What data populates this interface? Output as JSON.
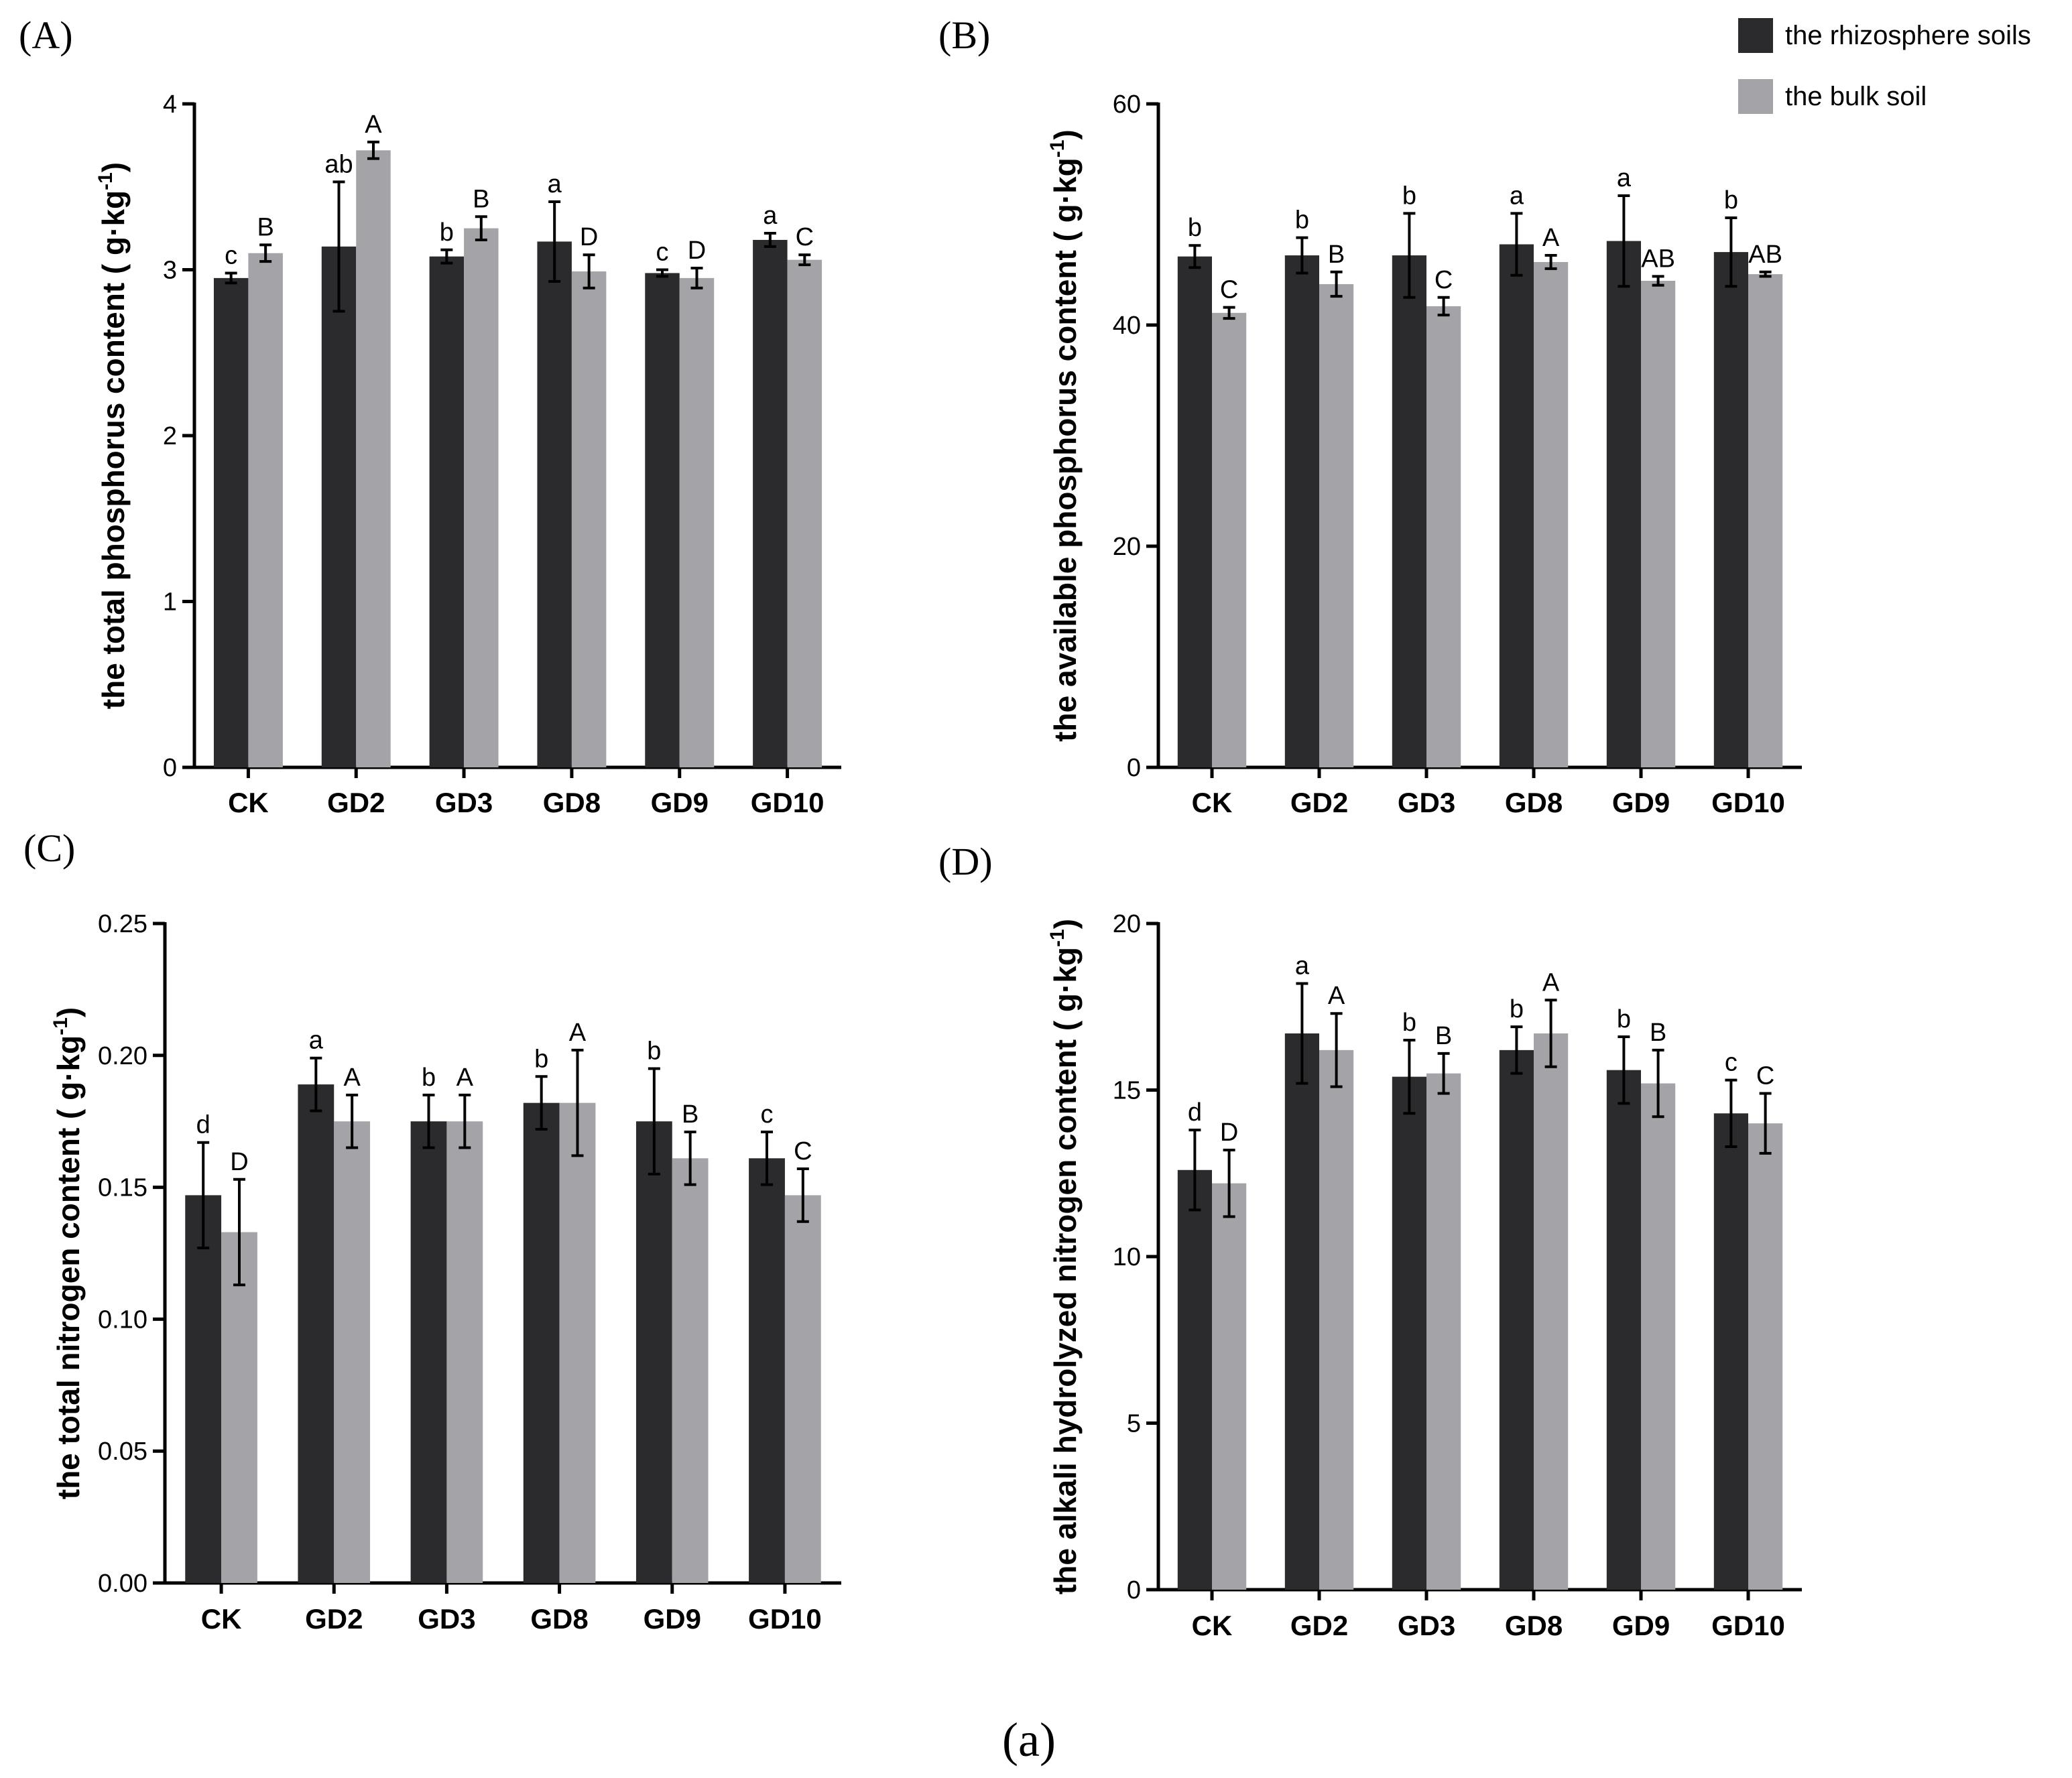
{
  "colors": {
    "rhizosphere": "#2b2b2d",
    "bulk": "#a4a4a8",
    "axis": "#000000"
  },
  "legend": {
    "position": "top-right",
    "items": [
      {
        "label": "the rhizosphere soils",
        "color": "#2b2b2d"
      },
      {
        "label": "the bulk soil",
        "color": "#a4a4a8"
      }
    ]
  },
  "caption": "(a)",
  "chart_data": [
    {
      "panel": "(A)",
      "type": "bar",
      "ylabel": "the total phosphorus content ( g·kg⁻¹)",
      "ylabel_main": "the total phosphorus content ( g·kg",
      "ylabel_sup": "-1",
      "ylabel_end": ")",
      "ylim": [
        0,
        4
      ],
      "yticks": [
        "0",
        "1",
        "2",
        "3",
        "4"
      ],
      "ytick_values": [
        0,
        1,
        2,
        3,
        4
      ],
      "categories": [
        "CK",
        "GD2",
        "GD3",
        "GD8",
        "GD9",
        "GD10"
      ],
      "series": [
        {
          "name": "the rhizosphere soils",
          "values": [
            2.95,
            3.14,
            3.08,
            3.17,
            2.98,
            3.18
          ],
          "errors": [
            0.03,
            0.39,
            0.04,
            0.24,
            0.02,
            0.04
          ],
          "letters": [
            "c",
            "ab",
            "b",
            "a",
            "c",
            "a"
          ]
        },
        {
          "name": "the bulk soil",
          "values": [
            3.1,
            3.72,
            3.25,
            2.99,
            2.95,
            3.06
          ],
          "errors": [
            0.05,
            0.05,
            0.07,
            0.1,
            0.06,
            0.03
          ],
          "letters": [
            "B",
            "A",
            "B",
            "D",
            "D",
            "C"
          ]
        }
      ]
    },
    {
      "panel": "(B)",
      "type": "bar",
      "ylabel": "the available phosphorus content ( g·kg⁻¹)",
      "ylabel_main": "the available phosphorus content ( g·kg",
      "ylabel_sup": "-1",
      "ylabel_end": ")",
      "ylim": [
        0,
        60
      ],
      "yticks": [
        "0",
        "20",
        "40",
        "60"
      ],
      "ytick_values": [
        0,
        20,
        40,
        60
      ],
      "categories": [
        "CK",
        "GD2",
        "GD3",
        "GD8",
        "GD9",
        "GD10"
      ],
      "series": [
        {
          "name": "the rhizosphere soils",
          "values": [
            46.2,
            46.3,
            46.3,
            47.3,
            47.6,
            46.6
          ],
          "errors": [
            1.0,
            1.6,
            3.8,
            2.8,
            4.1,
            3.1
          ],
          "letters": [
            "b",
            "b",
            "b",
            "a",
            "a",
            "b"
          ]
        },
        {
          "name": "the bulk soil",
          "values": [
            41.1,
            43.7,
            41.7,
            45.7,
            44.0,
            44.6
          ],
          "errors": [
            0.5,
            1.1,
            0.8,
            0.6,
            0.4,
            0.2
          ],
          "letters": [
            "C",
            "B",
            "C",
            "A",
            "AB",
            "AB"
          ]
        }
      ]
    },
    {
      "panel": "(C)",
      "type": "bar",
      "ylabel": "the total nitrogen content ( g·kg⁻¹)",
      "ylabel_main": "the total nitrogen content ( g·kg",
      "ylabel_sup": "-1",
      "ylabel_end": ")",
      "ylim": [
        0,
        0.25
      ],
      "yticks": [
        "0.00",
        "0.05",
        "0.10",
        "0.15",
        "0.20",
        "0.25"
      ],
      "ytick_values": [
        0,
        0.05,
        0.1,
        0.15,
        0.2,
        0.25
      ],
      "categories": [
        "CK",
        "GD2",
        "GD3",
        "GD8",
        "GD9",
        "GD10"
      ],
      "series": [
        {
          "name": "the rhizosphere soils",
          "values": [
            0.147,
            0.189,
            0.175,
            0.182,
            0.175,
            0.161
          ],
          "errors": [
            0.02,
            0.01,
            0.01,
            0.01,
            0.02,
            0.01
          ],
          "letters": [
            "d",
            "a",
            "b",
            "b",
            "b",
            "c"
          ]
        },
        {
          "name": "the bulk soil",
          "values": [
            0.133,
            0.175,
            0.175,
            0.182,
            0.161,
            0.147
          ],
          "errors": [
            0.02,
            0.01,
            0.01,
            0.02,
            0.01,
            0.01
          ],
          "letters": [
            "D",
            "A",
            "A",
            "A",
            "B",
            "C"
          ]
        }
      ]
    },
    {
      "panel": "(D)",
      "type": "bar",
      "ylabel": "the alkali hydrolyzed nitrogen content ( g·kg⁻¹)",
      "ylabel_main": "the alkali hydrolyzed nitrogen content ( g·kg",
      "ylabel_sup": "-1",
      "ylabel_end": ")",
      "ylim": [
        0,
        20
      ],
      "yticks": [
        "0",
        "5",
        "10",
        "15",
        "20"
      ],
      "ytick_values": [
        0,
        5,
        10,
        15,
        20
      ],
      "categories": [
        "CK",
        "GD2",
        "GD3",
        "GD8",
        "GD9",
        "GD10"
      ],
      "series": [
        {
          "name": "the rhizosphere soils",
          "values": [
            12.6,
            16.7,
            15.4,
            16.2,
            15.6,
            14.3
          ],
          "errors": [
            1.2,
            1.5,
            1.1,
            0.7,
            1.0,
            1.0
          ],
          "letters": [
            "d",
            "a",
            "b",
            "b",
            "b",
            "c"
          ]
        },
        {
          "name": "the bulk soil",
          "values": [
            12.2,
            16.2,
            15.5,
            16.7,
            15.2,
            14.0
          ],
          "errors": [
            1.0,
            1.1,
            0.6,
            1.0,
            1.0,
            0.9
          ],
          "letters": [
            "D",
            "A",
            "B",
            "A",
            "B",
            "C"
          ]
        }
      ]
    }
  ]
}
